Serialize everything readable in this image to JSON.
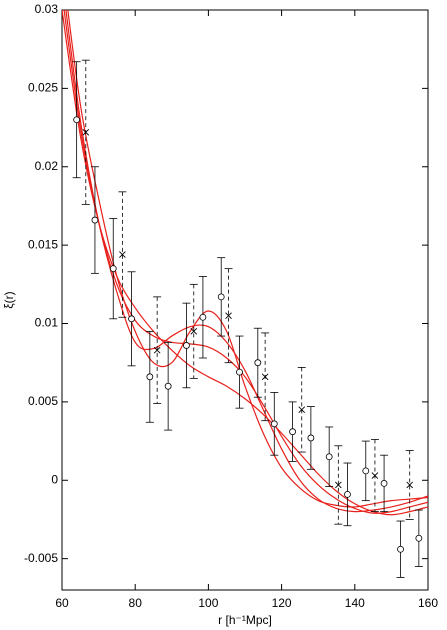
{
  "chart_data": {
    "type": "errorbar",
    "xlabel": "r [h⁻¹Mpc]",
    "ylabel": "ξ(r)",
    "xlim": [
      60,
      160
    ],
    "ylim": [
      -0.007,
      0.03
    ],
    "xticks": [
      60,
      80,
      100,
      120,
      140,
      160
    ],
    "yticks": [
      -0.005,
      0,
      0.005,
      0.01,
      0.015,
      0.02,
      0.025,
      0.03
    ],
    "series": [
      {
        "marker": "circle",
        "color": "#000000",
        "error_style": "solid",
        "x": [
          64,
          69,
          74,
          79,
          84,
          89,
          94,
          98.5,
          103.5,
          108.5,
          113.5,
          118,
          123,
          128,
          133,
          138,
          143,
          148,
          152.5,
          157.5
        ],
        "values": [
          0.023,
          0.0166,
          0.0135,
          0.0103,
          0.0066,
          0.006,
          0.0086,
          0.0104,
          0.0117,
          0.0069,
          0.0075,
          0.0036,
          0.0031,
          0.0027,
          0.0015,
          -0.0009,
          0.0006,
          -0.0002,
          -0.0044,
          -0.0037
        ],
        "errors": [
          0.0037,
          0.0034,
          0.0032,
          0.003,
          0.0029,
          0.0028,
          0.0027,
          0.0026,
          0.0025,
          0.0023,
          0.0022,
          0.002,
          0.0019,
          0.002,
          0.0019,
          0.002,
          0.0019,
          0.0018,
          0.0018,
          0.0018
        ]
      },
      {
        "marker": "cross",
        "color": "#000000",
        "error_style": "dashed",
        "x": [
          66.5,
          76.5,
          86,
          96,
          105.5,
          115.5,
          125.5,
          135.5,
          145.5,
          155
        ],
        "values": [
          0.0222,
          0.0144,
          0.0083,
          0.0095,
          0.0105,
          0.0066,
          0.0045,
          -0.0003,
          0.0003,
          -0.0003
        ],
        "errors": [
          0.0046,
          0.004,
          0.0034,
          0.003,
          0.003,
          0.0028,
          0.0027,
          0.0025,
          0.0023,
          0.0022
        ]
      }
    ],
    "model_color": "#e8211c",
    "model_x": [
      60,
      65,
      70,
      75,
      80,
      85,
      90,
      95,
      100,
      105,
      110,
      115,
      120,
      125,
      130,
      135,
      140,
      145,
      150,
      155,
      160
    ],
    "models": [
      {
        "values": [
          0.033,
          0.024,
          0.018,
          0.013,
          0.0095,
          0.0075,
          0.0075,
          0.0095,
          0.0108,
          0.0095,
          0.006,
          0.003,
          0.0008,
          -0.0005,
          -0.0013,
          -0.0016,
          -0.0017,
          -0.0015,
          -0.0013,
          -0.0012,
          -0.0011
        ]
      },
      {
        "values": [
          0.032,
          0.023,
          0.0165,
          0.012,
          0.0088,
          0.0084,
          0.0092,
          0.0098,
          0.0098,
          0.0088,
          0.007,
          0.0045,
          0.002,
          0.0,
          -0.0012,
          -0.0018,
          -0.002,
          -0.0019,
          -0.0017,
          -0.0014,
          -0.001
        ]
      },
      {
        "values": [
          0.031,
          0.0225,
          0.0165,
          0.0125,
          0.0102,
          0.0092,
          0.0088,
          0.0087,
          0.0085,
          0.0078,
          0.0066,
          0.0048,
          0.0028,
          0.001,
          -0.0003,
          -0.0012,
          -0.0018,
          -0.0021,
          -0.002,
          -0.0017,
          -0.0014
        ]
      },
      {
        "values": [
          0.03,
          0.022,
          0.0165,
          0.013,
          0.011,
          0.0095,
          0.0083,
          0.0073,
          0.0066,
          0.006,
          0.0052,
          0.0042,
          0.003,
          0.0017,
          0.0004,
          -0.0007,
          -0.0015,
          -0.002,
          -0.0022,
          -0.002,
          -0.0017
        ]
      }
    ]
  }
}
